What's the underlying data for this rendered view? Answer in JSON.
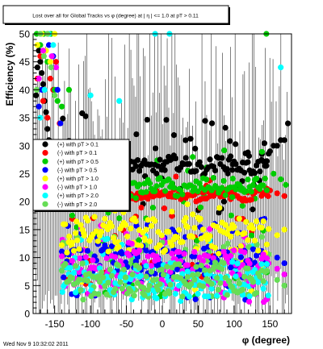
{
  "chart_data": {
    "type": "scatter",
    "title": "Lost over all for Global Tracks vs φ (degree) at | η | <= 1.0 at pT > 0.11",
    "xlabel": "φ (degree)",
    "ylabel": "Efficiency (%)",
    "xlim": [
      -180,
      180
    ],
    "ylim": [
      0,
      50
    ],
    "x_ticks": [
      -150,
      -100,
      -50,
      0,
      50,
      100,
      150
    ],
    "y_ticks": [
      0,
      5,
      10,
      15,
      20,
      25,
      30,
      35,
      40,
      45,
      50
    ],
    "footer": "Wed Nov  9 10:32:02 2011",
    "legend_position": "left-center",
    "series": [
      {
        "name": "(+) with pT > 0.1",
        "color": "#000000",
        "band": [
          26.5,
          1.3
        ],
        "noise": [
          18,
          36
        ],
        "left": [
          [
            -176,
            39
          ],
          [
            -174,
            44
          ],
          [
            -172,
            47
          ],
          [
            -170,
            45
          ],
          [
            -168,
            43
          ],
          [
            -166,
            41
          ],
          [
            -164,
            38
          ],
          [
            -162,
            36
          ],
          [
            -160,
            33
          ],
          [
            -158,
            31
          ],
          [
            -154,
            30
          ],
          [
            -150,
            29
          ],
          [
            -146,
            28
          ],
          [
            -142,
            28
          ]
        ],
        "right": [
          [
            150,
            29
          ],
          [
            155,
            30
          ],
          [
            160,
            30
          ],
          [
            165,
            31
          ],
          [
            170,
            31
          ],
          [
            175,
            34
          ]
        ]
      },
      {
        "name": "(-) with pT > 0.1",
        "color": "#ff0000",
        "band": [
          21.2,
          0.8
        ],
        "noise": [
          5,
          26
        ],
        "left": [
          [
            -174,
            42
          ],
          [
            -170,
            46
          ],
          [
            -166,
            38
          ],
          [
            -160,
            35
          ],
          [
            -156,
            42
          ],
          [
            -152,
            40
          ],
          [
            -148,
            45
          ],
          [
            -143,
            34
          ],
          [
            -140,
            30
          ]
        ],
        "right": [
          [
            150,
            22
          ],
          [
            160,
            21.5
          ],
          [
            170,
            21
          ]
        ]
      },
      {
        "name": "(+) with pT > 0.5",
        "color": "#00cc00",
        "band": [
          22.5,
          1.4
        ],
        "noise": [
          3,
          30
        ],
        "left": [
          [
            -175,
            50
          ],
          [
            -170,
            48
          ],
          [
            -165,
            50
          ],
          [
            -160,
            45
          ],
          [
            -155,
            50
          ],
          [
            -150,
            40
          ],
          [
            -146,
            38
          ],
          [
            -140,
            37
          ],
          [
            -130,
            40
          ]
        ],
        "right": [
          [
            145,
            50
          ],
          [
            155,
            25
          ],
          [
            165,
            24
          ],
          [
            172,
            23
          ]
        ]
      },
      {
        "name": "(-) with pT > 0.5",
        "color": "#0000ff",
        "band": [
          9,
          3
        ],
        "noise": [
          2,
          17
        ],
        "left": [
          [
            -172,
            37
          ],
          [
            -168,
            40
          ],
          [
            -162,
            30
          ],
          [
            -158,
            48
          ],
          [
            -152,
            46
          ],
          [
            -146,
            40
          ],
          [
            -142,
            34
          ]
        ],
        "right": [
          [
            160,
            10
          ],
          [
            170,
            9
          ]
        ]
      },
      {
        "name": "(+) with pT > 1.0",
        "color": "#ffff00",
        "band": [
          14,
          3
        ],
        "noise": [
          4,
          22
        ],
        "left": [
          [
            -174,
            48
          ],
          [
            -168,
            50
          ],
          [
            -162,
            47
          ],
          [
            -156,
            45
          ],
          [
            -150,
            50
          ]
        ],
        "right": [
          [
            160,
            14
          ],
          [
            170,
            15
          ]
        ]
      },
      {
        "name": "(-) with pT > 1.0",
        "color": "#ff00ff",
        "band": [
          8,
          3
        ],
        "noise": [
          2,
          16
        ],
        "left": [
          [
            -172,
            42
          ],
          [
            -166,
            47
          ],
          [
            -160,
            50
          ],
          [
            -154,
            46
          ],
          [
            -148,
            44
          ]
        ],
        "right": [
          [
            160,
            8
          ],
          [
            170,
            7
          ]
        ]
      },
      {
        "name": "(+) with pT > 2.0",
        "color": "#00ffff",
        "band": [
          6,
          3
        ],
        "noise": [
          2,
          14
        ],
        "left": [
          [
            -170,
            35
          ],
          [
            -164,
            40
          ],
          [
            -158,
            50
          ],
          [
            -152,
            48
          ],
          [
            -100,
            39
          ],
          [
            -60,
            38
          ]
        ],
        "right": [
          [
            -10,
            50
          ],
          [
            10,
            50
          ],
          [
            165,
            44
          ]
        ]
      },
      {
        "name": "(-) with pT > 2.0",
        "color": "#66dd55",
        "band": [
          6,
          3
        ],
        "noise": [
          2,
          14
        ],
        "left": [
          [
            -175,
            40
          ],
          [
            -170,
            50
          ],
          [
            -165,
            46
          ],
          [
            -160,
            50
          ],
          [
            -155,
            44
          ],
          [
            -150,
            39
          ]
        ],
        "right": [
          [
            160,
            6
          ],
          [
            170,
            5
          ]
        ]
      }
    ]
  }
}
